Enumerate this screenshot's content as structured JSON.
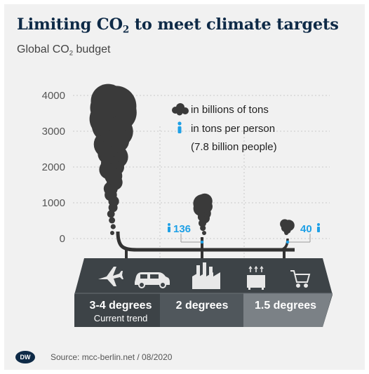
{
  "header": {
    "title_main": "Limiting CO",
    "title_sub": "2",
    "title_rest": " to meet climate targets",
    "subtitle_main": "Global CO",
    "subtitle_sub": "2",
    "subtitle_rest": " budget"
  },
  "legend": {
    "smoke_label": "in billions of tons",
    "person_label": "in tons per person",
    "person_note": "(7.8 billion people)",
    "smoke_icon": "smoke-cloud-icon",
    "person_icon": "person-icon"
  },
  "chart_data": {
    "type": "bar",
    "ylim": [
      0,
      4000
    ],
    "yticks": [
      "4000",
      "3000",
      "2000",
      "1000",
      "0"
    ],
    "ytick_values": [
      4000,
      3000,
      2000,
      1000,
      0
    ],
    "categories": [
      "3-4 degrees",
      "2 degrees",
      "1.5 degrees"
    ],
    "category_sub": [
      "Current trend",
      "",
      ""
    ],
    "values_billion_tons": [
      4000,
      1000,
      300
    ],
    "per_person_tons": [
      null,
      136,
      40
    ],
    "per_person_labels": [
      "",
      "136",
      "40"
    ],
    "colors": {
      "smoke": "#3a3a3a",
      "per_person": "#1ea0e6",
      "band_dark": "#3d4347",
      "band_mid": "#50575c",
      "band_light": "#7b8186"
    }
  },
  "band_icons": [
    "airplane-icon",
    "car-icon",
    "factory-icon",
    "building-heat-icon",
    "shopping-cart-icon"
  ],
  "footer": {
    "logo": "DW",
    "source": "Source: mcc-berlin.net / 08/2020"
  }
}
